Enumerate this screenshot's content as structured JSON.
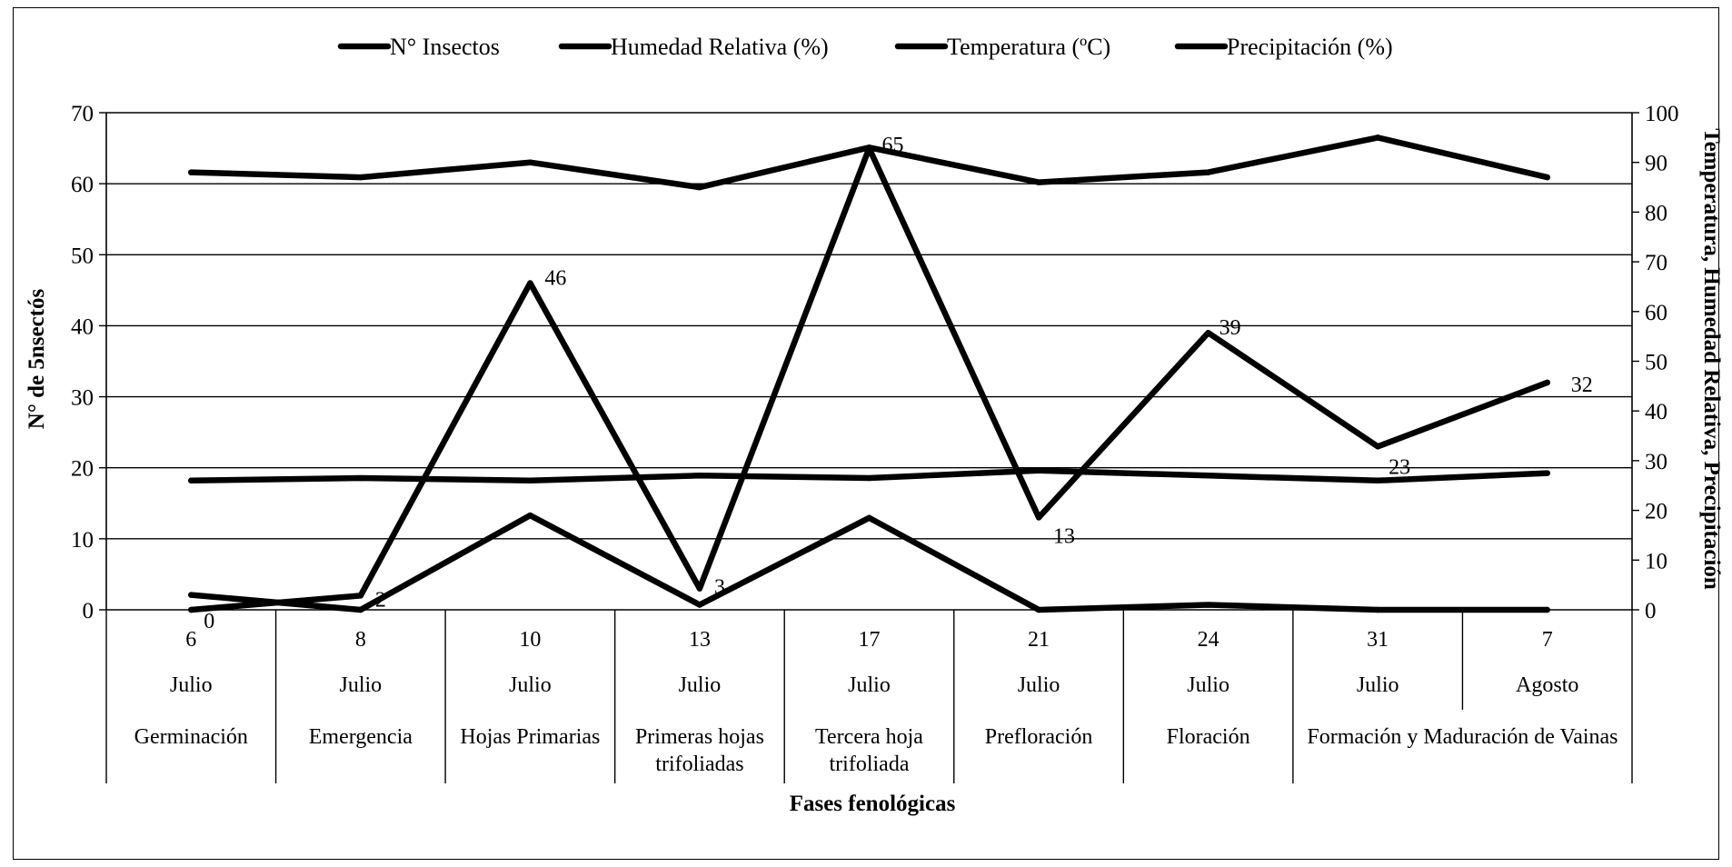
{
  "chart_data": {
    "type": "line",
    "legend": {
      "placement": "top",
      "entries": [
        "N° Insectos",
        "Humedad Relativa (%)",
        "Temperatura (ºC)",
        "Precipitación (%)"
      ]
    },
    "xlabel": "Fases fenológicas",
    "ylabel_left": "N° de 5nsectós",
    "ylabel_right": "Temperatura, Humedad Relativa, Precipitación",
    "ylim_left": [
      0,
      70
    ],
    "ylim_right": [
      0,
      100
    ],
    "yticks_left": [
      0,
      10,
      20,
      30,
      40,
      50,
      60,
      70
    ],
    "yticks_right": [
      0,
      10,
      20,
      30,
      40,
      50,
      60,
      70,
      80,
      90,
      100
    ],
    "grid": true,
    "categories": [
      {
        "day": "6",
        "month": "Julio"
      },
      {
        "day": "8",
        "month": "Julio"
      },
      {
        "day": "10",
        "month": "Julio"
      },
      {
        "day": "13",
        "month": "Julio"
      },
      {
        "day": "17",
        "month": "Julio"
      },
      {
        "day": "21",
        "month": "Julio"
      },
      {
        "day": "24",
        "month": "Julio"
      },
      {
        "day": "31",
        "month": "Julio"
      },
      {
        "day": "7",
        "month": "Agosto"
      }
    ],
    "phases": [
      {
        "label": "Germinación",
        "span": 1
      },
      {
        "label": "Emergencia",
        "span": 1
      },
      {
        "label": "Hojas Primarias",
        "span": 1
      },
      {
        "label": "Primeras hojas trifoliadas",
        "span": 1
      },
      {
        "label": "Tercera hoja trifoliada",
        "span": 1
      },
      {
        "label": "Prefloración",
        "span": 1
      },
      {
        "label": "Floración",
        "span": 1
      },
      {
        "label": "Formación y Maduración de Vainas",
        "span": 2
      }
    ],
    "series": [
      {
        "name": "N° Insectos",
        "axis": "left",
        "values": [
          0,
          2,
          46,
          3,
          65,
          13,
          39,
          23,
          32
        ],
        "labels": [
          "0",
          "2",
          "46",
          "3",
          "65",
          "13",
          "39",
          "23",
          "32"
        ],
        "color": "#000000"
      },
      {
        "name": "Humedad Relativa (%)",
        "axis": "right",
        "values": [
          88,
          87,
          90,
          85,
          93,
          86,
          88,
          95,
          87
        ],
        "color": "#000000"
      },
      {
        "name": "Temperatura (ºC)",
        "axis": "right",
        "values": [
          26,
          26.5,
          26,
          27,
          26.5,
          28,
          27,
          26,
          27.5
        ],
        "color": "#000000"
      },
      {
        "name": "Precipitación (%)",
        "axis": "right",
        "values": [
          3,
          0,
          19,
          1,
          18.5,
          0,
          1,
          0,
          0
        ],
        "color": "#000000"
      }
    ]
  }
}
